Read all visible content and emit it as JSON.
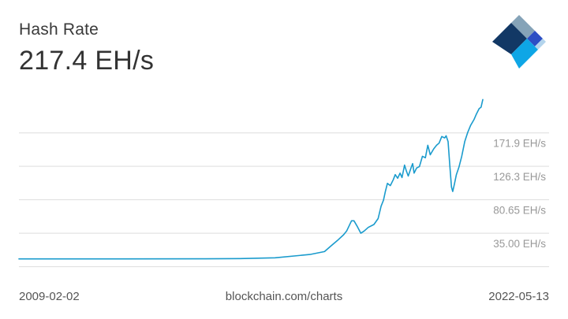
{
  "header": {
    "title": "Hash Rate",
    "current_value": "217.4 EH/s"
  },
  "footer": {
    "start_date": "2009-02-02",
    "source": "blockchain.com/charts",
    "end_date": "2022-05-13"
  },
  "colors": {
    "line": "#1a9bcd",
    "grid": "#dddddd",
    "tick_text": "#999999"
  },
  "chart_data": {
    "type": "line",
    "title": "Hash Rate",
    "xlabel": "",
    "ylabel": "",
    "xlim": [
      "2009-02-02",
      "2022-05-13"
    ],
    "ylim": [
      -10,
      235
    ],
    "y_ticks": [
      {
        "value": 35.0,
        "label": "35.00 EH/s"
      },
      {
        "value": 80.65,
        "label": "80.65 EH/s"
      },
      {
        "value": 126.3,
        "label": "126.3 EH/s"
      },
      {
        "value": 171.9,
        "label": "171.9 EH/s"
      }
    ],
    "grid": true,
    "series": [
      {
        "values": [
          [
            "2009-02-02",
            0
          ],
          [
            "2012-01-01",
            0
          ],
          [
            "2014-06-01",
            0.1
          ],
          [
            "2015-06-01",
            0.4
          ],
          [
            "2016-06-01",
            1.5
          ],
          [
            "2017-06-01",
            6
          ],
          [
            "2017-11-01",
            10
          ],
          [
            "2018-01-01",
            17
          ],
          [
            "2018-03-15",
            25
          ],
          [
            "2018-05-20",
            33
          ],
          [
            "2018-06-20",
            38
          ],
          [
            "2018-08-10",
            52
          ],
          [
            "2018-09-05",
            52
          ],
          [
            "2018-10-10",
            44
          ],
          [
            "2018-11-15",
            35
          ],
          [
            "2018-12-20",
            38
          ],
          [
            "2019-02-01",
            43
          ],
          [
            "2019-04-01",
            47
          ],
          [
            "2019-05-15",
            55
          ],
          [
            "2019-06-15",
            72
          ],
          [
            "2019-07-10",
            80
          ],
          [
            "2019-07-30",
            92
          ],
          [
            "2019-08-20",
            103
          ],
          [
            "2019-09-20",
            100
          ],
          [
            "2019-10-20",
            108
          ],
          [
            "2019-11-10",
            115
          ],
          [
            "2019-12-05",
            110
          ],
          [
            "2019-12-30",
            117
          ],
          [
            "2020-01-20",
            111
          ],
          [
            "2020-02-15",
            128
          ],
          [
            "2020-03-05",
            120
          ],
          [
            "2020-03-25",
            113
          ],
          [
            "2020-04-25",
            125
          ],
          [
            "2020-05-10",
            130
          ],
          [
            "2020-05-25",
            117
          ],
          [
            "2020-06-20",
            124
          ],
          [
            "2020-07-20",
            126
          ],
          [
            "2020-08-20",
            140
          ],
          [
            "2020-09-20",
            138
          ],
          [
            "2020-10-15",
            155
          ],
          [
            "2020-11-10",
            142
          ],
          [
            "2020-12-15",
            150
          ],
          [
            "2021-01-15",
            155
          ],
          [
            "2021-02-10",
            158
          ],
          [
            "2021-03-10",
            167
          ],
          [
            "2021-04-10",
            165
          ],
          [
            "2021-04-25",
            168
          ],
          [
            "2021-05-15",
            160
          ],
          [
            "2021-06-01",
            130
          ],
          [
            "2021-06-20",
            98
          ],
          [
            "2021-07-03",
            92
          ],
          [
            "2021-07-20",
            102
          ],
          [
            "2021-08-10",
            115
          ],
          [
            "2021-09-05",
            125
          ],
          [
            "2021-10-05",
            140
          ],
          [
            "2021-11-05",
            160
          ],
          [
            "2021-12-05",
            172
          ],
          [
            "2022-01-05",
            182
          ],
          [
            "2022-02-10",
            190
          ],
          [
            "2022-03-05",
            197
          ],
          [
            "2022-04-05",
            205
          ],
          [
            "2022-04-25",
            207
          ],
          [
            "2022-05-13",
            217.4
          ]
        ]
      }
    ]
  }
}
